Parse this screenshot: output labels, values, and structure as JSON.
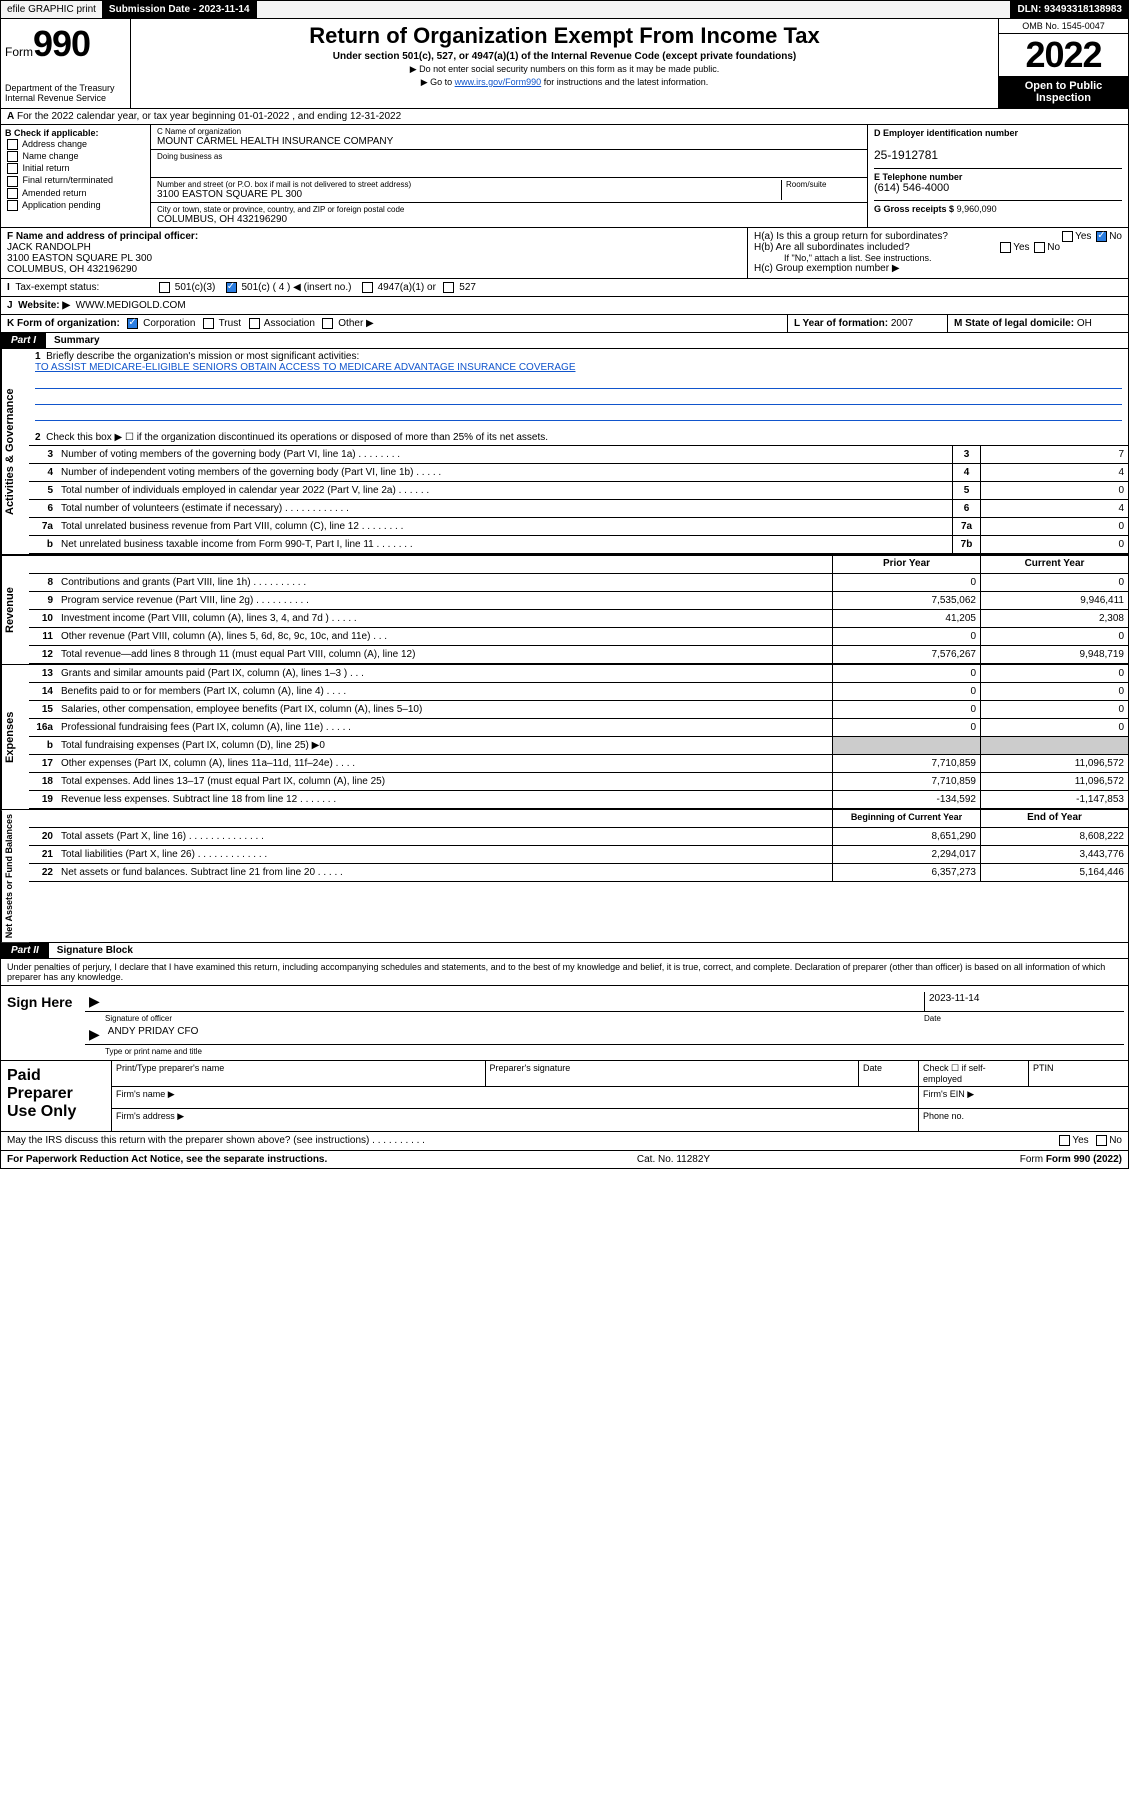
{
  "topbar": {
    "efile": "efile GRAPHIC print",
    "submission_label": "Submission Date - 2023-11-14",
    "dln": "DLN: 93493318138983"
  },
  "header": {
    "form_label": "Form",
    "form_number": "990",
    "dept": "Department of the Treasury\nInternal Revenue Service",
    "title": "Return of Organization Exempt From Income Tax",
    "subtitle": "Under section 501(c), 527, or 4947(a)(1) of the Internal Revenue Code (except private foundations)",
    "note1": "▶ Do not enter social security numbers on this form as it may be made public.",
    "note2_pre": "▶ Go to ",
    "note2_link": "www.irs.gov/Form990",
    "note2_post": " for instructions and the latest information.",
    "omb": "OMB No. 1545-0047",
    "year": "2022",
    "inspect": "Open to Public Inspection"
  },
  "row_a": "For the 2022 calendar year, or tax year beginning 01-01-2022   , and ending 12-31-2022",
  "section_b": {
    "header": "B Check if applicable:",
    "opts": [
      "Address change",
      "Name change",
      "Initial return",
      "Final return/terminated",
      "Amended return",
      "Application pending"
    ]
  },
  "section_c": {
    "name_lbl": "C Name of organization",
    "name": "MOUNT CARMEL HEALTH INSURANCE COMPANY",
    "dba_lbl": "Doing business as",
    "dba": "",
    "addr_lbl": "Number and street (or P.O. box if mail is not delivered to street address)",
    "suite_lbl": "Room/suite",
    "addr": "3100 EASTON SQUARE PL 300",
    "city_lbl": "City or town, state or province, country, and ZIP or foreign postal code",
    "city": "COLUMBUS, OH  432196290"
  },
  "section_d": {
    "lbl": "D Employer identification number",
    "val": "25-1912781"
  },
  "section_e": {
    "lbl": "E Telephone number",
    "val": "(614) 546-4000"
  },
  "section_g": {
    "lbl": "G Gross receipts $",
    "val": "9,960,090"
  },
  "section_f": {
    "lbl": "F Name and address of principal officer:",
    "name": "JACK RANDOLPH",
    "addr1": "3100 EASTON SQUARE PL 300",
    "addr2": "COLUMBUS, OH  432196290"
  },
  "section_h": {
    "ha": "H(a)  Is this a group return for subordinates?",
    "hb": "H(b)  Are all subordinates included?",
    "hb_note": "If \"No,\" attach a list. See instructions.",
    "hc": "H(c)  Group exemption number ▶",
    "yes": "Yes",
    "no": "No"
  },
  "row_i": {
    "lbl": "Tax-exempt status:",
    "o1": "501(c)(3)",
    "o2": "501(c) ( 4 ) ◀ (insert no.)",
    "o3": "4947(a)(1) or",
    "o4": "527"
  },
  "row_j": {
    "lbl": "Website: ▶",
    "val": "WWW.MEDIGOLD.COM"
  },
  "row_k": {
    "lbl": "K Form of organization:",
    "o1": "Corporation",
    "o2": "Trust",
    "o3": "Association",
    "o4": "Other ▶"
  },
  "row_l": {
    "lbl": "L Year of formation:",
    "val": "2007"
  },
  "row_m": {
    "lbl": "M State of legal domicile:",
    "val": "OH"
  },
  "part1": {
    "tag": "Part I",
    "title": "Summary",
    "q1": "Briefly describe the organization's mission or most significant activities:",
    "mission": "TO ASSIST MEDICARE-ELIGIBLE SENIORS OBTAIN ACCESS TO MEDICARE ADVANTAGE INSURANCE COVERAGE",
    "q2": "Check this box ▶ ☐  if the organization discontinued its operations or disposed of more than 25% of its net assets.",
    "lines_gov": [
      {
        "n": "3",
        "t": "Number of voting members of the governing body (Part VI, line 1a)   .    .    .    .    .    .    .    .",
        "box": "3",
        "v": "7"
      },
      {
        "n": "4",
        "t": "Number of independent voting members of the governing body (Part VI, line 1b)   .    .    .    .    .",
        "box": "4",
        "v": "4"
      },
      {
        "n": "5",
        "t": "Total number of individuals employed in calendar year 2022 (Part V, line 2a)   .    .    .    .    .    .",
        "box": "5",
        "v": "0"
      },
      {
        "n": "6",
        "t": "Total number of volunteers (estimate if necessary)   .    .    .    .    .    .    .    .    .    .    .    .",
        "box": "6",
        "v": "4"
      },
      {
        "n": "7a",
        "t": "Total unrelated business revenue from Part VIII, column (C), line 12   .    .    .    .    .    .    .    .",
        "box": "7a",
        "v": "0"
      },
      {
        "n": "b",
        "t": "Net unrelated business taxable income from Form 990-T, Part I, line 11   .    .    .    .    .    .    .",
        "box": "7b",
        "v": "0"
      }
    ],
    "col_prior": "Prior Year",
    "col_current": "Current Year",
    "lines_rev": [
      {
        "n": "8",
        "t": "Contributions and grants (Part VIII, line 1h)   .    .    .    .    .    .    .    .    .    .",
        "p": "0",
        "c": "0"
      },
      {
        "n": "9",
        "t": "Program service revenue (Part VIII, line 2g)   .    .    .    .    .    .    .    .    .    .",
        "p": "7,535,062",
        "c": "9,946,411"
      },
      {
        "n": "10",
        "t": "Investment income (Part VIII, column (A), lines 3, 4, and 7d )   .    .    .    .    .",
        "p": "41,205",
        "c": "2,308"
      },
      {
        "n": "11",
        "t": "Other revenue (Part VIII, column (A), lines 5, 6d, 8c, 9c, 10c, and 11e)   .    .    .",
        "p": "0",
        "c": "0"
      },
      {
        "n": "12",
        "t": "Total revenue—add lines 8 through 11 (must equal Part VIII, column (A), line 12)",
        "p": "7,576,267",
        "c": "9,948,719"
      }
    ],
    "lines_exp": [
      {
        "n": "13",
        "t": "Grants and similar amounts paid (Part IX, column (A), lines 1–3 )   .    .    .",
        "p": "0",
        "c": "0"
      },
      {
        "n": "14",
        "t": "Benefits paid to or for members (Part IX, column (A), line 4)   .    .    .    .",
        "p": "0",
        "c": "0"
      },
      {
        "n": "15",
        "t": "Salaries, other compensation, employee benefits (Part IX, column (A), lines 5–10)",
        "p": "0",
        "c": "0"
      },
      {
        "n": "16a",
        "t": "Professional fundraising fees (Part IX, column (A), line 11e)   .    .    .    .    .",
        "p": "0",
        "c": "0"
      },
      {
        "n": "b",
        "t": "Total fundraising expenses (Part IX, column (D), line 25) ▶0",
        "p": "",
        "c": "",
        "gray": true
      },
      {
        "n": "17",
        "t": "Other expenses (Part IX, column (A), lines 11a–11d, 11f–24e)   .    .    .    .",
        "p": "7,710,859",
        "c": "11,096,572"
      },
      {
        "n": "18",
        "t": "Total expenses. Add lines 13–17 (must equal Part IX, column (A), line 25)",
        "p": "7,710,859",
        "c": "11,096,572"
      },
      {
        "n": "19",
        "t": "Revenue less expenses. Subtract line 18 from line 12   .    .    .    .    .    .    .",
        "p": "-134,592",
        "c": "-1,147,853"
      }
    ],
    "col_begin": "Beginning of Current Year",
    "col_end": "End of Year",
    "lines_net": [
      {
        "n": "20",
        "t": "Total assets (Part X, line 16)   .    .    .    .    .    .    .    .    .    .    .    .    .    .",
        "p": "8,651,290",
        "c": "8,608,222"
      },
      {
        "n": "21",
        "t": "Total liabilities (Part X, line 26)   .    .    .    .    .    .    .    .    .    .    .    .    .",
        "p": "2,294,017",
        "c": "3,443,776"
      },
      {
        "n": "22",
        "t": "Net assets or fund balances. Subtract line 21 from line 20   .    .    .    .    .",
        "p": "6,357,273",
        "c": "5,164,446"
      }
    ],
    "vtabs": {
      "gov": "Activities & Governance",
      "rev": "Revenue",
      "exp": "Expenses",
      "net": "Net Assets or Fund Balances"
    }
  },
  "part2": {
    "tag": "Part II",
    "title": "Signature Block",
    "perjury": "Under penalties of perjury, I declare that I have examined this return, including accompanying schedules and statements, and to the best of my knowledge and belief, it is true, correct, and complete. Declaration of preparer (other than officer) is based on all information of which preparer has any knowledge.",
    "sign_here": "Sign Here",
    "sig_officer": "Signature of officer",
    "date_lbl": "Date",
    "date_val": "2023-11-14",
    "name_title": "ANDY PRIDAY CFO",
    "name_title_lbl": "Type or print name and title",
    "paid": "Paid Preparer Use Only",
    "pp_name": "Print/Type preparer's name",
    "pp_sig": "Preparer's signature",
    "pp_date": "Date",
    "pp_self": "Check ☐ if self-employed",
    "pp_ptin": "PTIN",
    "firm_name": "Firm's name   ▶",
    "firm_ein": "Firm's EIN ▶",
    "firm_addr": "Firm's address ▶",
    "phone": "Phone no."
  },
  "footer": {
    "discuss": "May the IRS discuss this return with the preparer shown above? (see instructions)   .    .    .    .    .    .    .    .    .    .",
    "yes": "Yes",
    "no": "No",
    "pra": "For Paperwork Reduction Act Notice, see the separate instructions.",
    "cat": "Cat. No. 11282Y",
    "form": "Form 990 (2022)"
  }
}
